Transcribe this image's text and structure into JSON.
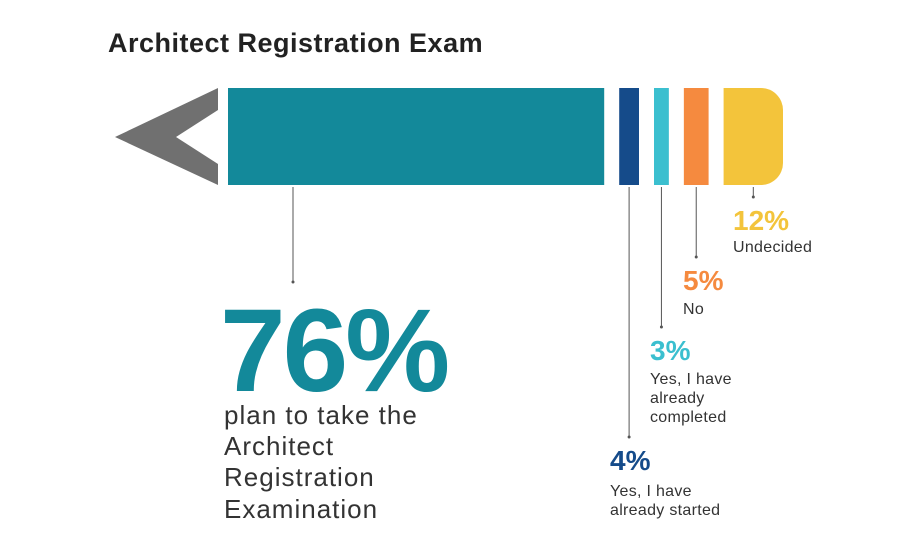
{
  "chart_data": {
    "type": "pencil",
    "title": "Architect Registration Exam",
    "categories": [
      "plan to take the Architect Registration Examination",
      "Yes, I have already started",
      "Yes, I have already completed",
      "No",
      "Undecided"
    ],
    "values": [
      76,
      4,
      3,
      5,
      12
    ],
    "value_labels": [
      "76%",
      "4%",
      "3%",
      "5%",
      "12%"
    ],
    "colors": [
      "#13899a",
      "#154b8a",
      "#3bbfcf",
      "#f58a3f",
      "#f3c43b"
    ]
  }
}
